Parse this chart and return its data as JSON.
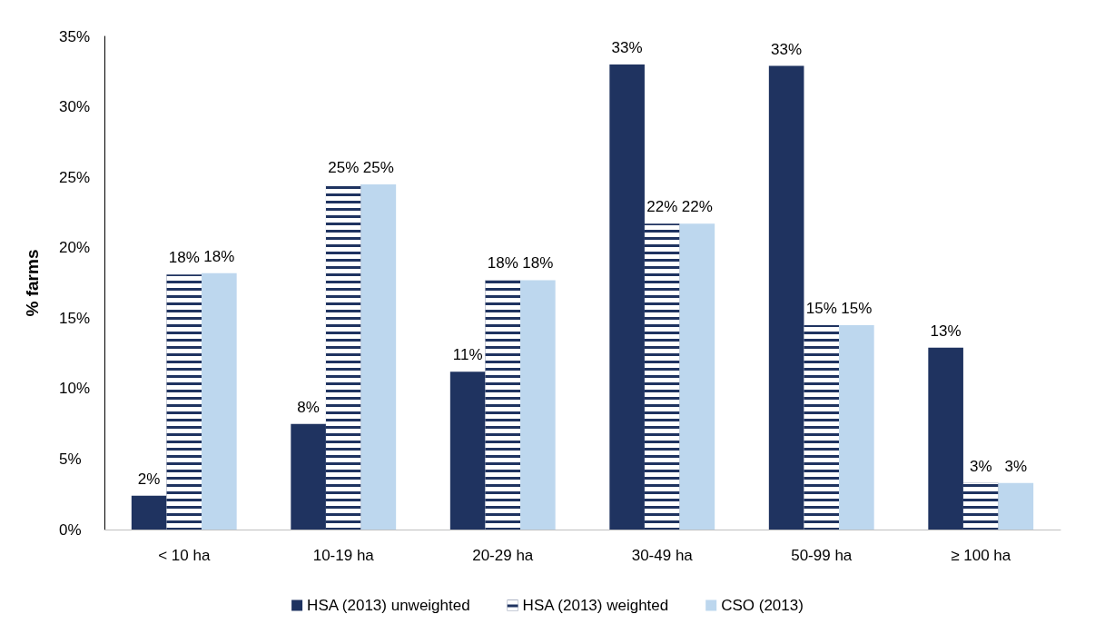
{
  "chart_data": {
    "type": "bar",
    "ylabel": "% farms",
    "categories": [
      "< 10 ha",
      "10-19 ha",
      "20-29 ha",
      "30-49 ha",
      "50-99 ha",
      "≥ 100 ha"
    ],
    "series": [
      {
        "name": "HSA (2013) unweighted",
        "color": "#1f3360",
        "values": [
          2.4,
          7.5,
          11.2,
          33.0,
          32.9,
          12.9
        ],
        "value_labels": [
          "2%",
          "8%",
          "11%",
          "33%",
          "33%",
          "13%"
        ]
      },
      {
        "name": "HSA (2013) weighted",
        "color": "#1f3360",
        "values": [
          18.1,
          24.5,
          17.7,
          21.7,
          14.5,
          3.3
        ],
        "value_labels": [
          "18%",
          "25%",
          "18%",
          "22%",
          "15%",
          "3%"
        ]
      },
      {
        "name": "CSO (2013)",
        "color": "#bdd7ee",
        "values": [
          18.2,
          24.5,
          17.7,
          21.7,
          14.5,
          3.3
        ],
        "value_labels": [
          "18%",
          "25%",
          "18%",
          "22%",
          "15%",
          "3%"
        ]
      }
    ],
    "ylim": [
      0,
      35
    ],
    "yticks": [
      {
        "value": 0,
        "label": "0%"
      },
      {
        "value": 5,
        "label": "5%"
      },
      {
        "value": 10,
        "label": "10%"
      },
      {
        "value": 15,
        "label": "15%"
      },
      {
        "value": 20,
        "label": "20%"
      },
      {
        "value": 25,
        "label": "25%"
      },
      {
        "value": 30,
        "label": "30%"
      },
      {
        "value": 35,
        "label": "35%"
      }
    ],
    "grid": false,
    "legend": "bottom"
  }
}
